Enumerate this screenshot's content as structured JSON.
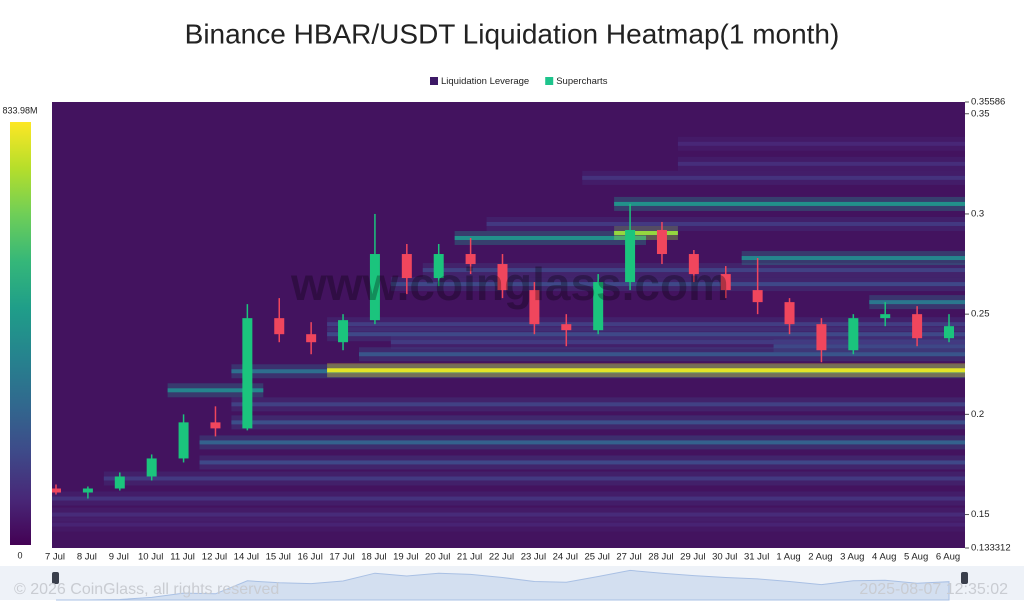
{
  "chart_data": {
    "type": "heatmap",
    "title": "Binance HBAR/USDT Liquidation Heatmap(1 month)",
    "watermark": "www.coinglass.com",
    "footer_left": "© 2026 CoinGlass, all rights reserved",
    "footer_right": "2025-08-07 12:35:02",
    "legend": [
      {
        "name": "Liquidation Leverage",
        "color": "#3d1966"
      },
      {
        "name": "Supercharts",
        "color": "#1ec48c"
      }
    ],
    "categories": [
      "7 Jul",
      "8 Jul",
      "9 Jul",
      "10 Jul",
      "11 Jul",
      "12 Jul",
      "14 Jul",
      "15 Jul",
      "16 Jul",
      "17 Jul",
      "18 Jul",
      "19 Jul",
      "20 Jul",
      "21 Jul",
      "22 Jul",
      "23 Jul",
      "24 Jul",
      "25 Jul",
      "27 Jul",
      "28 Jul",
      "29 Jul",
      "30 Jul",
      "31 Jul",
      "1 Aug",
      "2 Aug",
      "3 Aug",
      "4 Aug",
      "5 Aug",
      "6 Aug"
    ],
    "open": [
      0.163,
      0.161,
      0.163,
      0.169,
      0.178,
      0.196,
      0.193,
      0.248,
      0.24,
      0.236,
      0.247,
      0.28,
      0.268,
      0.28,
      0.275,
      0.262,
      0.245,
      0.242,
      0.266,
      0.292,
      0.28,
      0.27,
      0.262,
      0.256,
      0.245,
      0.232,
      0.248,
      0.25,
      0.238
    ],
    "high": [
      0.165,
      0.164,
      0.171,
      0.18,
      0.2,
      0.204,
      0.255,
      0.258,
      0.246,
      0.25,
      0.3,
      0.285,
      0.285,
      0.288,
      0.28,
      0.266,
      0.25,
      0.27,
      0.305,
      0.296,
      0.282,
      0.274,
      0.278,
      0.258,
      0.248,
      0.25,
      0.256,
      0.254,
      0.25
    ],
    "low": [
      0.16,
      0.158,
      0.162,
      0.167,
      0.176,
      0.189,
      0.192,
      0.236,
      0.23,
      0.232,
      0.245,
      0.26,
      0.264,
      0.27,
      0.258,
      0.24,
      0.234,
      0.24,
      0.262,
      0.275,
      0.266,
      0.258,
      0.25,
      0.24,
      0.226,
      0.23,
      0.244,
      0.234,
      0.236
    ],
    "close": [
      0.161,
      0.163,
      0.169,
      0.178,
      0.196,
      0.193,
      0.248,
      0.24,
      0.236,
      0.247,
      0.28,
      0.268,
      0.28,
      0.275,
      0.262,
      0.245,
      0.242,
      0.266,
      0.292,
      0.28,
      0.27,
      0.262,
      0.256,
      0.245,
      0.232,
      0.248,
      0.25,
      0.238,
      0.244
    ],
    "up_color": "#1bc47d",
    "down_color": "#f0465d",
    "bands": [
      {
        "price": 0.145,
        "start": 0,
        "end": 28,
        "value": 80
      },
      {
        "price": 0.15,
        "start": 0,
        "end": 28,
        "value": 100
      },
      {
        "price": 0.158,
        "start": 0,
        "end": 28,
        "value": 120
      },
      {
        "price": 0.168,
        "start": 2,
        "end": 28,
        "value": 140
      },
      {
        "price": 0.176,
        "start": 5,
        "end": 28,
        "value": 180
      },
      {
        "price": 0.186,
        "start": 5,
        "end": 28,
        "value": 260
      },
      {
        "price": 0.196,
        "start": 6,
        "end": 28,
        "value": 200
      },
      {
        "price": 0.205,
        "start": 6,
        "end": 28,
        "value": 160
      },
      {
        "price": 0.212,
        "start": 4,
        "end": 6,
        "value": 380
      },
      {
        "price": 0.2215,
        "start": 6,
        "end": 28,
        "value": 300
      },
      {
        "price": 0.222,
        "start": 9,
        "end": 28,
        "value": 800
      },
      {
        "price": 0.23,
        "start": 10,
        "end": 28,
        "value": 220
      },
      {
        "price": 0.234,
        "start": 23,
        "end": 28,
        "value": 200
      },
      {
        "price": 0.236,
        "start": 11,
        "end": 28,
        "value": 140
      },
      {
        "price": 0.24,
        "start": 9,
        "end": 28,
        "value": 180
      },
      {
        "price": 0.245,
        "start": 9,
        "end": 28,
        "value": 150
      },
      {
        "price": 0.256,
        "start": 26,
        "end": 28,
        "value": 330
      },
      {
        "price": 0.265,
        "start": 11,
        "end": 28,
        "value": 180
      },
      {
        "price": 0.272,
        "start": 12,
        "end": 28,
        "value": 160
      },
      {
        "price": 0.278,
        "start": 22,
        "end": 28,
        "value": 380
      },
      {
        "price": 0.288,
        "start": 13,
        "end": 18,
        "value": 420
      },
      {
        "price": 0.2905,
        "start": 18,
        "end": 19,
        "value": 700
      },
      {
        "price": 0.295,
        "start": 14,
        "end": 28,
        "value": 140
      },
      {
        "price": 0.305,
        "start": 18,
        "end": 28,
        "value": 420
      },
      {
        "price": 0.318,
        "start": 17,
        "end": 28,
        "value": 120
      },
      {
        "price": 0.325,
        "start": 20,
        "end": 28,
        "value": 110
      },
      {
        "price": 0.335,
        "start": 20,
        "end": 28,
        "value": 90
      }
    ],
    "colorbar": {
      "lim": [
        0,
        833.98
      ],
      "ticks": [
        {
          "value": 833.98,
          "label": "833.98M"
        },
        0
      ]
    },
    "ylim": [
      0.133312,
      0.35586
    ],
    "yticks": [
      0.35586,
      0.35,
      0.3,
      0.25,
      0.2,
      0.15,
      0.133312
    ]
  }
}
